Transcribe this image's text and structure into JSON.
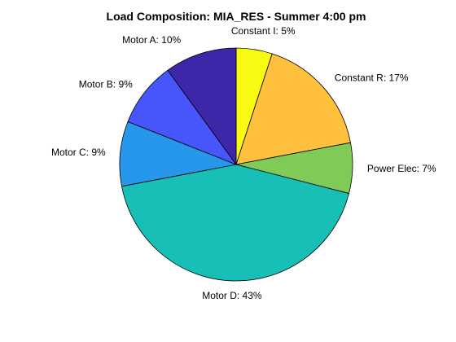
{
  "chart_data": {
    "type": "pie",
    "title": "Load Composition: MIA_RES - Summer 4:00 pm",
    "slices": [
      {
        "label": "Constant I: 5%",
        "value": 5,
        "color": "#f9fa13"
      },
      {
        "label": "Constant R: 17%",
        "value": 17,
        "color": "#fec03d"
      },
      {
        "label": "Power Elec: 7%",
        "value": 7,
        "color": "#80cb58"
      },
      {
        "label": "Motor D: 43%",
        "value": 43,
        "color": "#17bfb6"
      },
      {
        "label": "Motor C: 9%",
        "value": 9,
        "color": "#2797ec"
      },
      {
        "label": "Motor B: 9%",
        "value": 9,
        "color": "#4756fb"
      },
      {
        "label": "Motor A: 10%",
        "value": 10,
        "color": "#3e26a8"
      }
    ]
  }
}
